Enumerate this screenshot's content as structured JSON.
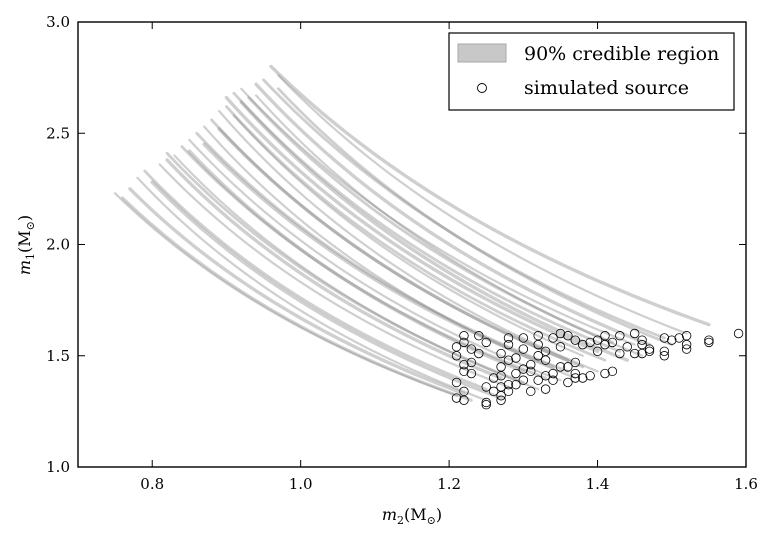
{
  "chart_data": {
    "type": "scatter",
    "xlabel_var": "m",
    "xlabel_sub": "2",
    "xlabel_unit": "(M",
    "xlabel_sun": "⊙",
    "xlabel_close": ")",
    "ylabel_var": "m",
    "ylabel_sub": "1",
    "ylabel_unit": "(M",
    "ylabel_sun": "⊙",
    "ylabel_close": ")",
    "xlim": [
      0.7,
      1.6
    ],
    "ylim": [
      1.0,
      3.0
    ],
    "x_ticks": [
      "0.8",
      "1.0",
      "1.2",
      "1.4",
      "1.6"
    ],
    "x_tick_values": [
      0.8,
      1.0,
      1.2,
      1.4,
      1.6
    ],
    "y_ticks": [
      "1.0",
      "1.5",
      "2.0",
      "2.5",
      "3.0"
    ],
    "y_tick_values": [
      1.0,
      1.5,
      2.0,
      2.5,
      3.0
    ],
    "grid": false,
    "legend_position": "top-right",
    "legend": [
      {
        "label": "90% credible region",
        "marker": "patch",
        "color": "#c8c8c8"
      },
      {
        "label": "simulated source",
        "marker": "open-circle",
        "color": "#000000"
      }
    ],
    "band_color": "#808080",
    "credible_regions": [
      {
        "x_start": 0.75,
        "y_start": 2.23,
        "x_end": 1.21,
        "y_end": 1.32
      },
      {
        "x_start": 0.76,
        "y_start": 2.21,
        "x_end": 1.23,
        "y_end": 1.3
      },
      {
        "x_start": 0.77,
        "y_start": 2.25,
        "x_end": 1.22,
        "y_end": 1.33
      },
      {
        "x_start": 0.78,
        "y_start": 2.3,
        "x_end": 1.25,
        "y_end": 1.3
      },
      {
        "x_start": 0.79,
        "y_start": 2.33,
        "x_end": 1.25,
        "y_end": 1.35
      },
      {
        "x_start": 0.8,
        "y_start": 2.28,
        "x_end": 1.27,
        "y_end": 1.31
      },
      {
        "x_start": 0.81,
        "y_start": 2.36,
        "x_end": 1.28,
        "y_end": 1.36
      },
      {
        "x_start": 0.82,
        "y_start": 2.41,
        "x_end": 1.3,
        "y_end": 1.38
      },
      {
        "x_start": 0.82,
        "y_start": 2.38,
        "x_end": 1.27,
        "y_end": 1.4
      },
      {
        "x_start": 0.83,
        "y_start": 2.4,
        "x_end": 1.32,
        "y_end": 1.35
      },
      {
        "x_start": 0.84,
        "y_start": 2.44,
        "x_end": 1.33,
        "y_end": 1.4
      },
      {
        "x_start": 0.85,
        "y_start": 2.42,
        "x_end": 1.3,
        "y_end": 1.43
      },
      {
        "x_start": 0.85,
        "y_start": 2.47,
        "x_end": 1.35,
        "y_end": 1.39
      },
      {
        "x_start": 0.86,
        "y_start": 2.5,
        "x_end": 1.36,
        "y_end": 1.43
      },
      {
        "x_start": 0.87,
        "y_start": 2.45,
        "x_end": 1.34,
        "y_end": 1.45
      },
      {
        "x_start": 0.87,
        "y_start": 2.53,
        "x_end": 1.37,
        "y_end": 1.4
      },
      {
        "x_start": 0.88,
        "y_start": 2.56,
        "x_end": 1.38,
        "y_end": 1.45
      },
      {
        "x_start": 0.89,
        "y_start": 2.52,
        "x_end": 1.36,
        "y_end": 1.48
      },
      {
        "x_start": 0.89,
        "y_start": 2.6,
        "x_end": 1.4,
        "y_end": 1.43
      },
      {
        "x_start": 0.9,
        "y_start": 2.62,
        "x_end": 1.41,
        "y_end": 1.48
      },
      {
        "x_start": 0.9,
        "y_start": 2.66,
        "x_end": 1.4,
        "y_end": 1.52
      },
      {
        "x_start": 0.91,
        "y_start": 2.58,
        "x_end": 1.38,
        "y_end": 1.5
      },
      {
        "x_start": 0.91,
        "y_start": 2.68,
        "x_end": 1.43,
        "y_end": 1.52
      },
      {
        "x_start": 0.92,
        "y_start": 2.64,
        "x_end": 1.44,
        "y_end": 1.48
      },
      {
        "x_start": 0.92,
        "y_start": 2.7,
        "x_end": 1.45,
        "y_end": 1.55
      },
      {
        "x_start": 0.93,
        "y_start": 2.66,
        "x_end": 1.42,
        "y_end": 1.56
      },
      {
        "x_start": 0.94,
        "y_start": 2.72,
        "x_end": 1.47,
        "y_end": 1.55
      },
      {
        "x_start": 0.94,
        "y_start": 2.67,
        "x_end": 1.46,
        "y_end": 1.5
      },
      {
        "x_start": 0.95,
        "y_start": 2.74,
        "x_end": 1.49,
        "y_end": 1.58
      },
      {
        "x_start": 0.96,
        "y_start": 2.8,
        "x_end": 1.55,
        "y_end": 1.64
      },
      {
        "x_start": 0.97,
        "y_start": 2.76,
        "x_end": 1.52,
        "y_end": 1.6
      },
      {
        "x_start": 0.97,
        "y_start": 2.7,
        "x_end": 1.5,
        "y_end": 1.55
      }
    ],
    "points": [
      {
        "x": 1.21,
        "y": 1.31
      },
      {
        "x": 1.22,
        "y": 1.3
      },
      {
        "x": 1.21,
        "y": 1.38
      },
      {
        "x": 1.22,
        "y": 1.43
      },
      {
        "x": 1.22,
        "y": 1.34
      },
      {
        "x": 1.23,
        "y": 1.42
      },
      {
        "x": 1.22,
        "y": 1.46
      },
      {
        "x": 1.23,
        "y": 1.47
      },
      {
        "x": 1.21,
        "y": 1.5
      },
      {
        "x": 1.21,
        "y": 1.54
      },
      {
        "x": 1.22,
        "y": 1.59
      },
      {
        "x": 1.22,
        "y": 1.56
      },
      {
        "x": 1.23,
        "y": 1.53
      },
      {
        "x": 1.24,
        "y": 1.51
      },
      {
        "x": 1.24,
        "y": 1.59
      },
      {
        "x": 1.25,
        "y": 1.56
      },
      {
        "x": 1.25,
        "y": 1.29
      },
      {
        "x": 1.25,
        "y": 1.28
      },
      {
        "x": 1.25,
        "y": 1.36
      },
      {
        "x": 1.26,
        "y": 1.34
      },
      {
        "x": 1.26,
        "y": 1.4
      },
      {
        "x": 1.27,
        "y": 1.3
      },
      {
        "x": 1.27,
        "y": 1.32
      },
      {
        "x": 1.27,
        "y": 1.36
      },
      {
        "x": 1.27,
        "y": 1.41
      },
      {
        "x": 1.27,
        "y": 1.45
      },
      {
        "x": 1.27,
        "y": 1.51
      },
      {
        "x": 1.28,
        "y": 1.34
      },
      {
        "x": 1.28,
        "y": 1.37
      },
      {
        "x": 1.28,
        "y": 1.48
      },
      {
        "x": 1.28,
        "y": 1.55
      },
      {
        "x": 1.28,
        "y": 1.58
      },
      {
        "x": 1.29,
        "y": 1.49
      },
      {
        "x": 1.29,
        "y": 1.42
      },
      {
        "x": 1.29,
        "y": 1.37
      },
      {
        "x": 1.3,
        "y": 1.39
      },
      {
        "x": 1.3,
        "y": 1.44
      },
      {
        "x": 1.3,
        "y": 1.53
      },
      {
        "x": 1.3,
        "y": 1.58
      },
      {
        "x": 1.31,
        "y": 1.43
      },
      {
        "x": 1.31,
        "y": 1.46
      },
      {
        "x": 1.31,
        "y": 1.34
      },
      {
        "x": 1.32,
        "y": 1.39
      },
      {
        "x": 1.32,
        "y": 1.5
      },
      {
        "x": 1.32,
        "y": 1.55
      },
      {
        "x": 1.32,
        "y": 1.59
      },
      {
        "x": 1.33,
        "y": 1.35
      },
      {
        "x": 1.33,
        "y": 1.41
      },
      {
        "x": 1.33,
        "y": 1.48
      },
      {
        "x": 1.33,
        "y": 1.52
      },
      {
        "x": 1.34,
        "y": 1.58
      },
      {
        "x": 1.34,
        "y": 1.42
      },
      {
        "x": 1.34,
        "y": 1.39
      },
      {
        "x": 1.35,
        "y": 1.45
      },
      {
        "x": 1.35,
        "y": 1.54
      },
      {
        "x": 1.35,
        "y": 1.6
      },
      {
        "x": 1.36,
        "y": 1.38
      },
      {
        "x": 1.36,
        "y": 1.45
      },
      {
        "x": 1.36,
        "y": 1.59
      },
      {
        "x": 1.37,
        "y": 1.42
      },
      {
        "x": 1.37,
        "y": 1.47
      },
      {
        "x": 1.37,
        "y": 1.4
      },
      {
        "x": 1.37,
        "y": 1.57
      },
      {
        "x": 1.38,
        "y": 1.4
      },
      {
        "x": 1.38,
        "y": 1.55
      },
      {
        "x": 1.39,
        "y": 1.41
      },
      {
        "x": 1.39,
        "y": 1.56
      },
      {
        "x": 1.4,
        "y": 1.52
      },
      {
        "x": 1.4,
        "y": 1.57
      },
      {
        "x": 1.41,
        "y": 1.42
      },
      {
        "x": 1.41,
        "y": 1.55
      },
      {
        "x": 1.41,
        "y": 1.59
      },
      {
        "x": 1.42,
        "y": 1.43
      },
      {
        "x": 1.42,
        "y": 1.56
      },
      {
        "x": 1.43,
        "y": 1.51
      },
      {
        "x": 1.43,
        "y": 1.59
      },
      {
        "x": 1.44,
        "y": 1.54
      },
      {
        "x": 1.45,
        "y": 1.6
      },
      {
        "x": 1.45,
        "y": 1.51
      },
      {
        "x": 1.46,
        "y": 1.51
      },
      {
        "x": 1.46,
        "y": 1.55
      },
      {
        "x": 1.46,
        "y": 1.57
      },
      {
        "x": 1.47,
        "y": 1.52
      },
      {
        "x": 1.47,
        "y": 1.53
      },
      {
        "x": 1.49,
        "y": 1.5
      },
      {
        "x": 1.49,
        "y": 1.52
      },
      {
        "x": 1.49,
        "y": 1.58
      },
      {
        "x": 1.5,
        "y": 1.57
      },
      {
        "x": 1.51,
        "y": 1.58
      },
      {
        "x": 1.52,
        "y": 1.53
      },
      {
        "x": 1.52,
        "y": 1.55
      },
      {
        "x": 1.52,
        "y": 1.59
      },
      {
        "x": 1.55,
        "y": 1.56
      },
      {
        "x": 1.55,
        "y": 1.57
      },
      {
        "x": 1.59,
        "y": 1.6
      }
    ]
  }
}
